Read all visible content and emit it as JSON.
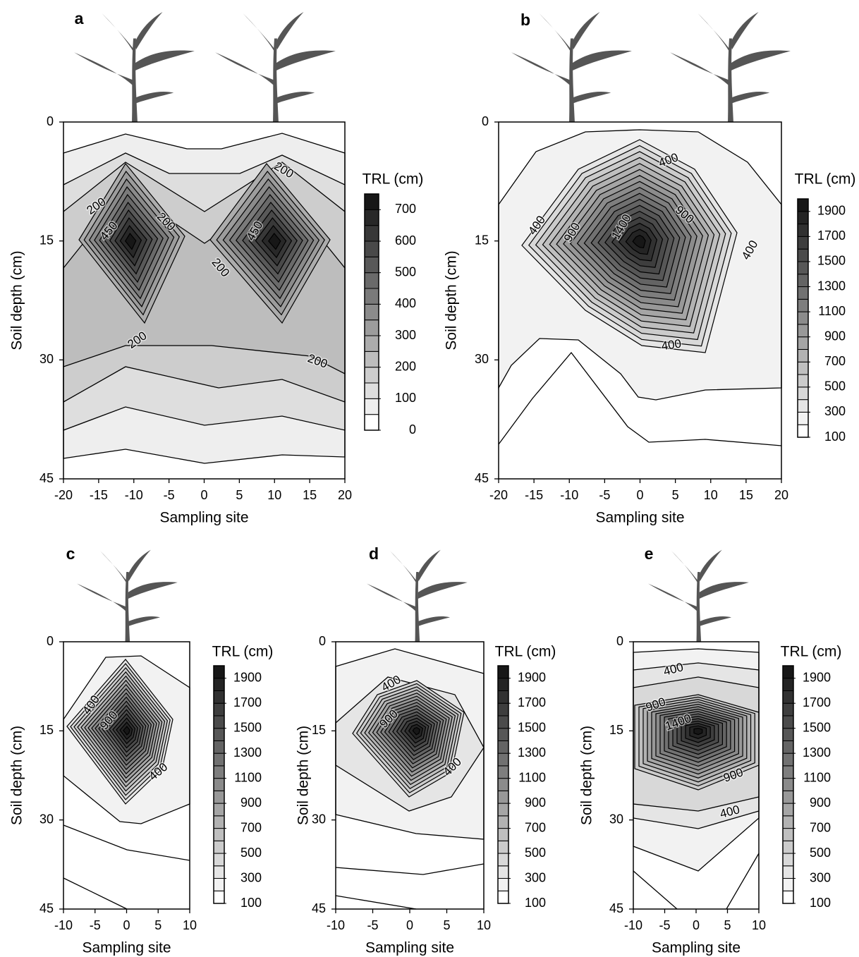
{
  "chart_data": [
    {
      "type": "contour",
      "panel_label": "a",
      "xlabel": "Sampling site",
      "ylabel": "Soil depth (cm)",
      "xlim": [
        -20,
        20
      ],
      "xticks": [
        -20,
        -15,
        -10,
        -5,
        0,
        5,
        10,
        15,
        20
      ],
      "ylim": [
        45,
        0
      ],
      "yticks": [
        0,
        15,
        30,
        45
      ],
      "colorbar": {
        "label": "TRL (cm)",
        "clim": [
          0,
          750
        ],
        "ticks": [
          0,
          100,
          200,
          300,
          400,
          500,
          600,
          700
        ]
      },
      "contour_labels": [
        200,
        450,
        200,
        200,
        200,
        450,
        200,
        200
      ]
    },
    {
      "type": "contour",
      "panel_label": "b",
      "xlabel": "Sampling site",
      "ylabel": "Soil depth (cm)",
      "xlim": [
        -20,
        20
      ],
      "xticks": [
        -20,
        -15,
        -10,
        -5,
        0,
        5,
        10,
        15,
        20
      ],
      "ylim": [
        45,
        0
      ],
      "yticks": [
        0,
        15,
        30,
        45
      ],
      "colorbar": {
        "label": "TRL (cm)",
        "clim": [
          100,
          2000
        ],
        "ticks": [
          100,
          300,
          500,
          700,
          900,
          1100,
          1300,
          1500,
          1700,
          1900
        ]
      },
      "contour_labels": [
        400,
        900,
        1400,
        900,
        400,
        400,
        400
      ]
    },
    {
      "type": "contour",
      "panel_label": "c",
      "xlabel": "Sampling site",
      "ylabel": "Soil depth (cm)",
      "xlim": [
        -10,
        10
      ],
      "xticks": [
        -10,
        -5,
        0,
        5,
        10
      ],
      "ylim": [
        45,
        0
      ],
      "yticks": [
        0,
        15,
        30,
        45
      ],
      "colorbar": {
        "label": "TRL (cm)",
        "clim": [
          100,
          2000
        ],
        "ticks": [
          100,
          300,
          500,
          700,
          900,
          1100,
          1300,
          1500,
          1700,
          1900
        ]
      },
      "contour_labels": [
        400,
        900,
        400
      ]
    },
    {
      "type": "contour",
      "panel_label": "d",
      "xlabel": "Sampling site",
      "ylabel": "Soil depth (cm)",
      "xlim": [
        -10,
        10
      ],
      "xticks": [
        -10,
        -5,
        0,
        5,
        10
      ],
      "ylim": [
        45,
        0
      ],
      "yticks": [
        0,
        15,
        30,
        45
      ],
      "colorbar": {
        "label": "TRL (cm)",
        "clim": [
          100,
          2000
        ],
        "ticks": [
          100,
          300,
          500,
          700,
          900,
          1100,
          1300,
          1500,
          1700,
          1900
        ]
      },
      "contour_labels": [
        400,
        900,
        400
      ]
    },
    {
      "type": "contour",
      "panel_label": "e",
      "xlabel": "Sampling site",
      "ylabel": "Soil depth (cm)",
      "xlim": [
        -10,
        10
      ],
      "xticks": [
        -10,
        -5,
        0,
        5,
        10
      ],
      "ylim": [
        45,
        0
      ],
      "yticks": [
        0,
        15,
        30,
        45
      ],
      "colorbar": {
        "label": "TRL (cm)",
        "clim": [
          100,
          2000
        ],
        "ticks": [
          100,
          300,
          500,
          700,
          900,
          1100,
          1300,
          1500,
          1700,
          1900
        ]
      },
      "contour_labels": [
        400,
        900,
        1400,
        900,
        400
      ]
    }
  ]
}
